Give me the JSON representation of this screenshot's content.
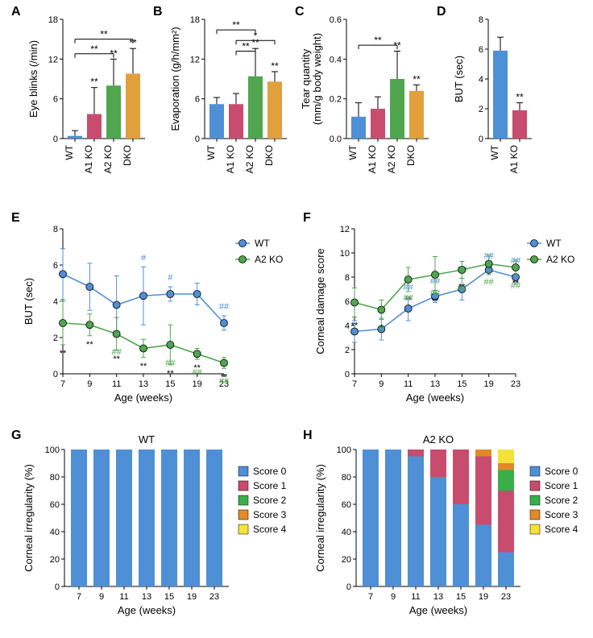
{
  "colors": {
    "wt": "#4F8FD6",
    "a1ko": "#C84C6E",
    "a2ko": "#4FA64F",
    "dko": "#E0A03C",
    "score2": "#3AAE4A",
    "score3": "#E08B26",
    "score4": "#F6E13A",
    "axis": "#000000",
    "errbar": "#333333"
  },
  "layout": {
    "barW": 18,
    "barGap": 6
  },
  "labels": {
    "A": "A",
    "B": "B",
    "C": "C",
    "D": "D",
    "E": "E",
    "F": "F",
    "G": "G",
    "H": "H",
    "WT": "WT",
    "A1KO": "A1 KO",
    "A2KO": "A2 KO",
    "DKO": "DKO",
    "xAge": "Age (weeks)"
  },
  "panelA": {
    "ylabel": "Eye blinks (/min)",
    "ymax": 18,
    "ytick": 6,
    "cats": [
      "WT",
      "A1 KO",
      "A2 KO",
      "DKO"
    ],
    "vals": [
      0.4,
      3.7,
      8.0,
      9.8
    ],
    "errs": [
      0.8,
      4.0,
      4.0,
      3.8
    ],
    "colors": [
      "wt",
      "a1ko",
      "a2ko",
      "dko"
    ],
    "stars": [
      "",
      "**",
      "**",
      "**"
    ],
    "brackets": [
      {
        "from": 0,
        "to": 2,
        "y": 12.8,
        "txt": "**"
      },
      {
        "from": 0,
        "to": 3,
        "y": 15.0,
        "txt": "**"
      }
    ]
  },
  "panelB": {
    "ylabel": "Evaporation (g/h/mm²)",
    "ymax": 18,
    "ytick": 6,
    "cats": [
      "WT",
      "A1 KO",
      "A2 KO",
      "DKO"
    ],
    "vals": [
      5.2,
      5.2,
      9.4,
      8.6
    ],
    "errs": [
      1.0,
      1.6,
      4.2,
      1.5
    ],
    "colors": [
      "wt",
      "a1ko",
      "a2ko",
      "dko"
    ],
    "stars": [
      "",
      "",
      "**",
      "**"
    ],
    "brackets": [
      {
        "from": 1,
        "to": 2,
        "y": 13.2,
        "txt": "**"
      },
      {
        "from": 1,
        "to": 3,
        "y": 14.8,
        "txt": "*"
      },
      {
        "from": 0,
        "to": 2,
        "y": 16.4,
        "txt": "**"
      }
    ]
  },
  "panelC": {
    "ylabel": "Tear quantity\n(mm/g body weight)",
    "ymax": 0.6,
    "ytick": 0.2,
    "decimals": 1,
    "cats": [
      "WT",
      "A1 KO",
      "A2 KO",
      "DKO"
    ],
    "vals": [
      0.11,
      0.15,
      0.3,
      0.24
    ],
    "errs": [
      0.07,
      0.06,
      0.14,
      0.03
    ],
    "colors": [
      "wt",
      "a1ko",
      "a2ko",
      "dko"
    ],
    "stars": [
      "",
      "",
      "**",
      "**"
    ],
    "brackets": [
      {
        "from": 0,
        "to": 2,
        "y": 0.47,
        "txt": "**"
      }
    ]
  },
  "panelD": {
    "ylabel": "BUT (sec)",
    "ymax": 8,
    "ytick": 2,
    "cats": [
      "WT",
      "A1 KO"
    ],
    "vals": [
      5.9,
      1.9
    ],
    "errs": [
      0.9,
      0.5
    ],
    "colors": [
      "wt",
      "a1ko"
    ],
    "stars": [
      "",
      "**"
    ]
  },
  "panelE": {
    "ylabel": "BUT (sec)",
    "ymax": 8,
    "ytick": 2,
    "x": [
      7,
      9,
      11,
      13,
      15,
      19,
      23
    ],
    "series": [
      {
        "name": "WT",
        "color": "wt",
        "vals": [
          5.5,
          4.8,
          3.8,
          4.3,
          4.4,
          4.4,
          2.8
        ],
        "errs": [
          1.4,
          1.3,
          1.6,
          1.6,
          0.4,
          0.6,
          0.4
        ],
        "marks": [
          "",
          "",
          "",
          "#",
          "#",
          "",
          "##"
        ],
        "markColor": "wt"
      },
      {
        "name": "A2 KO",
        "color": "a2ko",
        "vals": [
          2.8,
          2.7,
          2.2,
          1.4,
          1.6,
          1.1,
          0.6
        ],
        "errs": [
          1.2,
          0.6,
          0.9,
          0.5,
          1.1,
          0.3,
          0.3
        ],
        "marks": [
          "**",
          "**",
          "**",
          "**",
          "**",
          "**",
          "**"
        ],
        "markColor": "axis",
        "marks2": [
          "",
          "",
          "##",
          "",
          "##",
          "##",
          "##"
        ],
        "mark2Color": "a2ko"
      }
    ],
    "legend": [
      "WT",
      "A2 KO"
    ],
    "legendColors": [
      "wt",
      "a2ko"
    ]
  },
  "panelF": {
    "ylabel": "Corneal damage score",
    "ymax": 12,
    "ytick": 2,
    "x": [
      7,
      9,
      11,
      13,
      15,
      19,
      23
    ],
    "series": [
      {
        "name": "WT",
        "color": "wt",
        "vals": [
          3.5,
          3.7,
          5.4,
          6.4,
          7.0,
          8.6,
          8.0
        ],
        "errs": [
          0.9,
          0.9,
          1.0,
          0.5,
          0.9,
          0.4,
          0.6
        ],
        "marks": [
          "",
          "",
          "##",
          "##",
          "##",
          "##",
          "##"
        ],
        "markColor": "wt"
      },
      {
        "name": "A2 KO",
        "color": "a2ko",
        "vals": [
          5.9,
          5.3,
          7.8,
          8.2,
          8.6,
          9.1,
          8.8
        ],
        "errs": [
          1.2,
          0.8,
          1.0,
          1.5,
          0.7,
          0.7,
          0.6
        ],
        "marks": [
          "**",
          "*",
          "**",
          "**",
          "**",
          "",
          "**"
        ],
        "markColor": "axis",
        "marks2": [
          "",
          "#",
          "##",
          "##",
          "##",
          "##",
          "##"
        ],
        "mark2Color": "a2ko"
      }
    ],
    "legend": [
      "WT",
      "A2 KO"
    ],
    "legendColors": [
      "wt",
      "a2ko"
    ]
  },
  "panelG": {
    "title": "WT",
    "ylabel": "Corneal irregularity (%)",
    "x": [
      7,
      9,
      11,
      13,
      15,
      19,
      23
    ],
    "stacks": [
      [
        100,
        0,
        0,
        0,
        0
      ],
      [
        100,
        0,
        0,
        0,
        0
      ],
      [
        100,
        0,
        0,
        0,
        0
      ],
      [
        100,
        0,
        0,
        0,
        0
      ],
      [
        100,
        0,
        0,
        0,
        0
      ],
      [
        100,
        0,
        0,
        0,
        0
      ],
      [
        100,
        0,
        0,
        0,
        0
      ]
    ],
    "scoreLabels": [
      "Score 0",
      "Score 1",
      "Score 2",
      "Score 3",
      "Score 4"
    ],
    "scoreColors": [
      "wt",
      "a1ko",
      "score2",
      "score3",
      "score4"
    ]
  },
  "panelH": {
    "title": "A2 KO",
    "ylabel": "Corneal irregularity (%)",
    "x": [
      7,
      9,
      11,
      13,
      15,
      19,
      23
    ],
    "stacks": [
      [
        100,
        0,
        0,
        0,
        0
      ],
      [
        100,
        0,
        0,
        0,
        0
      ],
      [
        95,
        5,
        0,
        0,
        0
      ],
      [
        80,
        20,
        0,
        0,
        0
      ],
      [
        60,
        40,
        0,
        0,
        0
      ],
      [
        45,
        50,
        0,
        5,
        0
      ],
      [
        25,
        45,
        15,
        5,
        10
      ]
    ],
    "scoreLabels": [
      "Score 0",
      "Score 1",
      "Score 2",
      "Score 3",
      "Score 4"
    ],
    "scoreColors": [
      "wt",
      "a1ko",
      "score2",
      "score3",
      "score4"
    ]
  }
}
